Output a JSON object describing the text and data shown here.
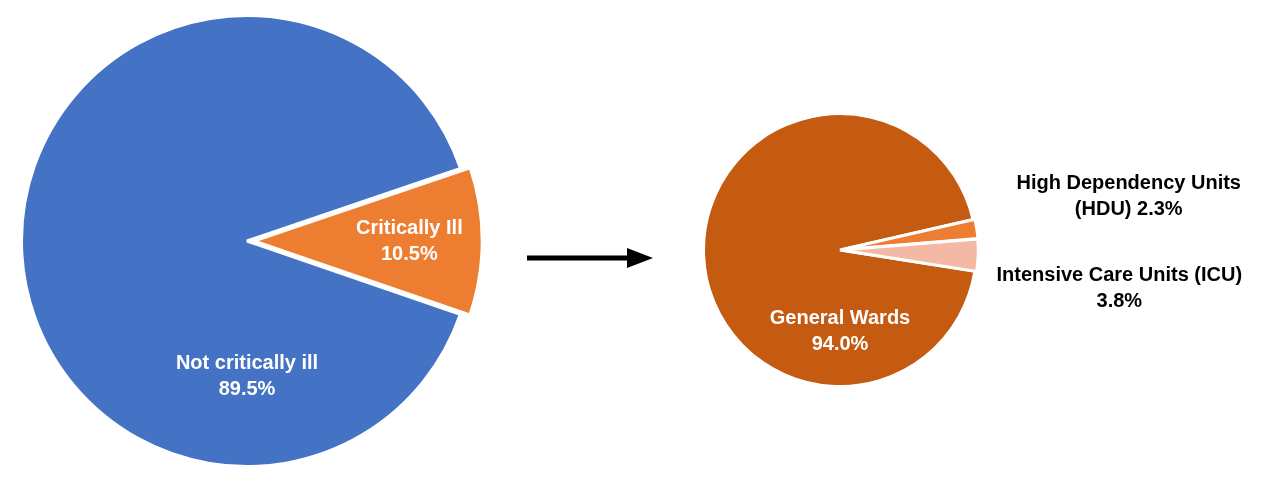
{
  "chart_data": [
    {
      "type": "pie",
      "categories": [
        "Not critically ill",
        "Critically Ill"
      ],
      "values": [
        89.5,
        10.5
      ],
      "colors": [
        "#4472c4",
        "#ed7d31"
      ],
      "value_labels": [
        "89.5%",
        "10.5%"
      ],
      "legend": false
    },
    {
      "type": "pie",
      "categories": [
        "General Wards",
        "High Dependency Units (HDU)",
        "Intensive Care Units (ICU)"
      ],
      "values": [
        94.0,
        2.3,
        3.8
      ],
      "colors": [
        "#c55a11",
        "#ed7d31",
        "#f4b9a4"
      ],
      "value_labels": [
        "94.0%",
        "2.3%",
        "3.8%"
      ],
      "legend": false
    }
  ]
}
